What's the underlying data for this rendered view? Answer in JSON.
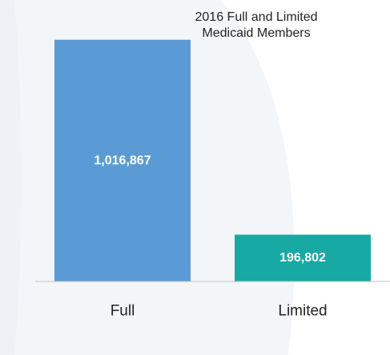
{
  "chart_data": {
    "type": "bar",
    "title": [
      "2016 Full and Limited",
      "Medicaid Members"
    ],
    "categories": [
      "Full",
      "Limited"
    ],
    "values": [
      1016867,
      196802
    ],
    "value_labels": [
      "1,016,867",
      "196,802"
    ],
    "bar_colors": [
      "#5b9bd5",
      "#17a9a4"
    ],
    "ylim": [
      0,
      1100000
    ],
    "grid": false,
    "legend": "none"
  },
  "colors": {
    "background": "#ffffff",
    "background_shape": "#f3f6f9",
    "baseline": "#c0c0c0",
    "value_label": "#ffffff",
    "category_label": "#222222"
  }
}
